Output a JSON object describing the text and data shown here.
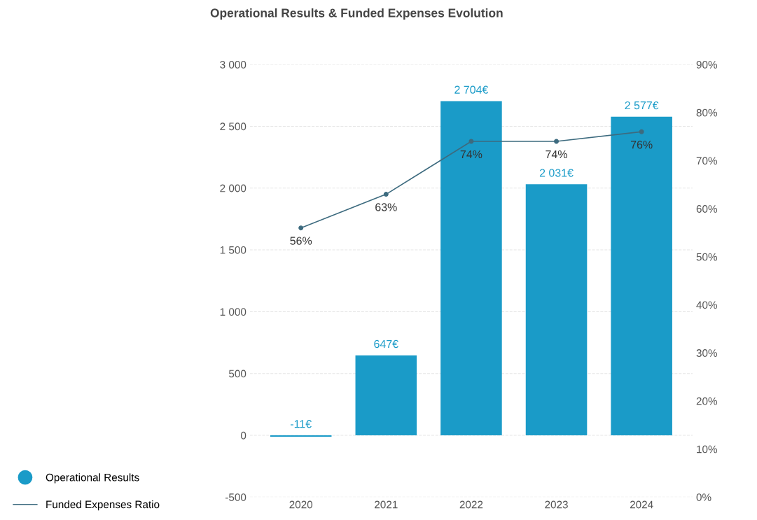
{
  "chart_data": {
    "type": "bar",
    "title": "Operational Results & Funded Expenses Evolution",
    "categories": [
      "2020",
      "2021",
      "2022",
      "2023",
      "2024"
    ],
    "series": [
      {
        "name": "Operational Results",
        "color": "#1a9bc8",
        "values": [
          -11,
          647,
          2704,
          2031,
          2577
        ],
        "value_labels": [
          "-11€",
          "647€",
          "2 704€",
          "2 031€",
          "2 577€"
        ]
      },
      {
        "name": "Funded Expenses Ratio",
        "type": "line",
        "axis": "y2",
        "color": "#3d6b7f",
        "marker": "circle",
        "values": [
          56,
          63,
          74,
          74,
          76
        ],
        "value_labels": [
          "56%",
          "63%",
          "74%",
          "74%",
          "76%"
        ]
      }
    ],
    "ylim": [
      -500,
      3000
    ],
    "yticks": [
      {
        "value": -500,
        "label": "-500"
      },
      0,
      500,
      {
        "value": 1000,
        "label": "1 000"
      },
      {
        "value": 1500,
        "label": "1 500"
      },
      {
        "value": 2000,
        "label": "2 000"
      },
      {
        "value": 2500,
        "label": "2 500"
      },
      {
        "value": 3000,
        "label": "3 000"
      }
    ],
    "y2lim": [
      0,
      90
    ],
    "y2ticks": [
      {
        "value": 0,
        "label": "0%"
      },
      {
        "value": 10,
        "label": "10%"
      },
      {
        "value": 20,
        "label": "20%"
      },
      {
        "value": 30,
        "label": "30%"
      },
      {
        "value": 40,
        "label": "40%"
      },
      {
        "value": 50,
        "label": "50%"
      },
      {
        "value": 60,
        "label": "60%"
      },
      {
        "value": 70,
        "label": "70%"
      },
      {
        "value": 80,
        "label": "80%"
      },
      {
        "value": 90,
        "label": "90%"
      }
    ],
    "grid": "y",
    "legend": "bottom left"
  }
}
